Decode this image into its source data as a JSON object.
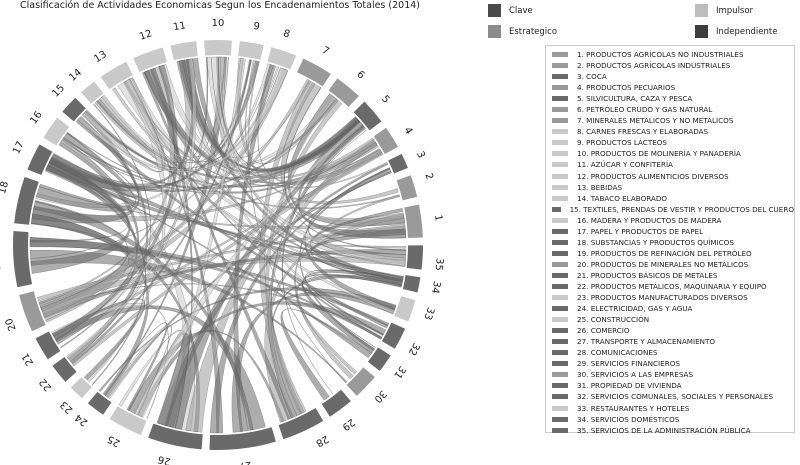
{
  "title": "Clasificación de Actividades Economicas Segun los Encadenamientos Totales (2014)",
  "classes": [
    {
      "label": "Clave",
      "color": "#4a4a4a"
    },
    {
      "label": "Impulsor",
      "color": "#bdbdbd"
    },
    {
      "label": "Estrategico",
      "color": "#8c8c8c"
    },
    {
      "label": "Independiente",
      "color": "#3e3e3e"
    }
  ],
  "tones": {
    "dark": "#6a6a6a",
    "medium": "#9a9a9a",
    "light": "#c9c9c9"
  },
  "sectors": [
    {
      "id": "1",
      "label": "1. PRODUCTOS AGRÍCOLAS NO INDUSTRIALES",
      "tone": "medium"
    },
    {
      "id": "2",
      "label": "2. PRODUCTOS AGRÍCOLAS INDUSTRIALES",
      "tone": "medium"
    },
    {
      "id": "3",
      "label": "3. COCA",
      "tone": "dark"
    },
    {
      "id": "4",
      "label": "4. PRODUCTOS PECUARIOS",
      "tone": "medium"
    },
    {
      "id": "5",
      "label": "5. SILVICULTURA, CAZA Y PESCA",
      "tone": "dark"
    },
    {
      "id": "6",
      "label": "6. PETRÓLEO CRUDO Y GAS NATURAL",
      "tone": "medium"
    },
    {
      "id": "7",
      "label": "7. MINERALES METÁLICOS Y NO METÁLICOS",
      "tone": "medium"
    },
    {
      "id": "8",
      "label": "8. CARNES FRESCAS Y ELABORADAS",
      "tone": "light"
    },
    {
      "id": "9",
      "label": "9. PRODUCTOS LÁCTEOS",
      "tone": "light"
    },
    {
      "id": "10",
      "label": "10. PRODUCTOS DE MOLINERÍA Y PANADERÍA",
      "tone": "light"
    },
    {
      "id": "11",
      "label": "11. AZÚCAR Y CONFITERÍA",
      "tone": "light"
    },
    {
      "id": "12",
      "label": "12. PRODUCTOS ALIMENTICIOS DIVERSOS",
      "tone": "light"
    },
    {
      "id": "13",
      "label": "13. BEBIDAS",
      "tone": "light"
    },
    {
      "id": "14",
      "label": "14. TABACO ELABORADO",
      "tone": "light"
    },
    {
      "id": "15",
      "label": "15. TEXTILES, PRENDAS DE VESTIR Y PRODUCTOS DEL CUERO",
      "tone": "dark"
    },
    {
      "id": "16",
      "label": "16. MADERA Y PRODUCTOS DE MADERA",
      "tone": "light"
    },
    {
      "id": "17",
      "label": "17. PAPEL Y PRODUCTOS DE PAPEL",
      "tone": "dark"
    },
    {
      "id": "18",
      "label": "18. SUBSTANCIAS Y PRODUCTOS QUÍMICOS",
      "tone": "dark"
    },
    {
      "id": "19",
      "label": "19. PRODUCTOS DE REFINACIÓN DEL PETRÓLEO",
      "tone": "dark"
    },
    {
      "id": "20",
      "label": "20. PRODUCTOS DE MINERALES NO METÁLICOS",
      "tone": "medium"
    },
    {
      "id": "21",
      "label": "21. PRODUCTOS BÁSICOS DE METALES",
      "tone": "dark"
    },
    {
      "id": "22",
      "label": "22. PRODUCTOS METÁLICOS, MAQUINARIA Y EQUIPO",
      "tone": "dark"
    },
    {
      "id": "23",
      "label": "23. PRODUCTOS MANUFACTURADOS DIVERSOS",
      "tone": "light"
    },
    {
      "id": "24",
      "label": "24. ELECTRICIDAD, GAS Y AGUA",
      "tone": "dark"
    },
    {
      "id": "25",
      "label": "25. CONSTRUCCIÓN",
      "tone": "light"
    },
    {
      "id": "26",
      "label": "26. COMERCIO",
      "tone": "dark"
    },
    {
      "id": "27",
      "label": "27. TRANSPORTE Y ALMACENAMIENTO",
      "tone": "dark"
    },
    {
      "id": "28",
      "label": "28. COMUNICACIONES",
      "tone": "dark"
    },
    {
      "id": "29",
      "label": "29. SERVICIOS FINANCIEROS",
      "tone": "dark"
    },
    {
      "id": "30",
      "label": "30. SERVICIOS A LAS EMPRESAS",
      "tone": "medium"
    },
    {
      "id": "31",
      "label": "31. PROPIEDAD DE VIVIENDA",
      "tone": "dark"
    },
    {
      "id": "32",
      "label": "32. SERVICIOS COMUNALES, SOCIALES Y PERSONALES",
      "tone": "dark"
    },
    {
      "id": "33",
      "label": "33. RESTAURANTES Y HOTELES",
      "tone": "light"
    },
    {
      "id": "34",
      "label": "34. SERVICIOS DOMÉSTICOS",
      "tone": "dark"
    },
    {
      "id": "35",
      "label": "35. SERVICIOS DE LA ADMINISTRACIÓN PÚBLICA",
      "tone": "dark"
    }
  ]
}
